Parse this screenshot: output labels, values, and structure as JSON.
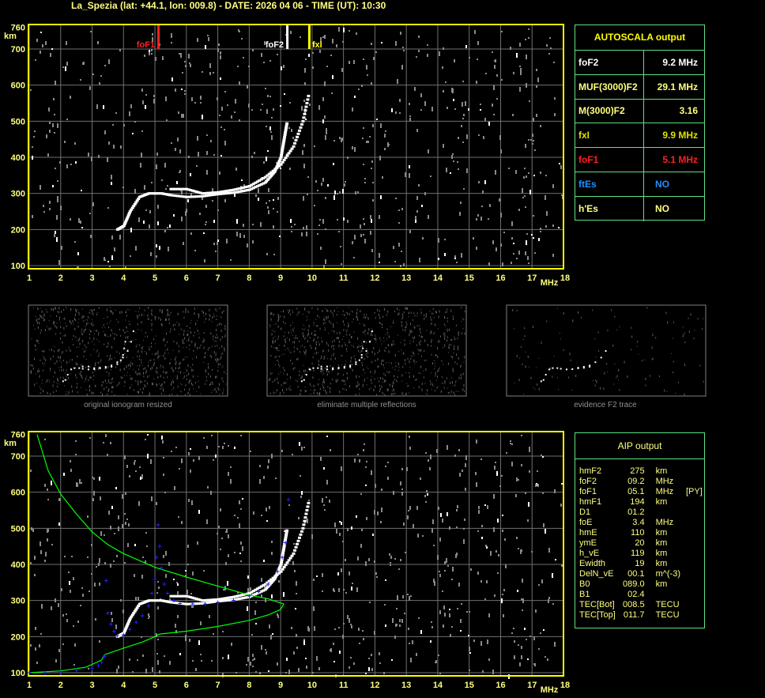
{
  "header": {
    "title": "La_Spezia (lat: +44.1, lon: 009.8) - DATE: 2026 04 06 - TIME (UT): 10:30"
  },
  "colors": {
    "frame": "#ffff00",
    "grid": "#707070",
    "foF1": "#ff2020",
    "foF2": "#ffffff",
    "fxI": "#ffff00",
    "profile": "#00ff00",
    "synthetic": "#2020ff",
    "table_border": "#60e080",
    "blue_text": "#1e90ff"
  },
  "chart_data": [
    {
      "type": "scatter",
      "xlabel": "MHz",
      "ylabel": "km",
      "xlim": [
        1,
        18
      ],
      "ylim": [
        100,
        760
      ],
      "xticks": [
        "1",
        "2",
        "3",
        "4",
        "5",
        "6",
        "7",
        "8",
        "9",
        "10",
        "11",
        "12",
        "13",
        "14",
        "15",
        "16",
        "17",
        "18"
      ],
      "yticks": [
        "760",
        "700",
        "600",
        "500",
        "400",
        "300",
        "200",
        "100"
      ],
      "grid": true,
      "markers": [
        {
          "label": "foF1",
          "x": 5.1,
          "color": "#ff2020"
        },
        {
          "label": "foF2",
          "x": 9.2,
          "color": "#ffffff"
        },
        {
          "label": "fxI",
          "x": 9.9,
          "color": "#ffff00"
        }
      ],
      "o_trace": [
        [
          3.8,
          200
        ],
        [
          4.0,
          210
        ],
        [
          4.2,
          250
        ],
        [
          4.5,
          290
        ],
        [
          4.8,
          300
        ],
        [
          5.2,
          300
        ],
        [
          5.5,
          295
        ],
        [
          6,
          290
        ],
        [
          6.5,
          292
        ],
        [
          7,
          298
        ],
        [
          7.5,
          302
        ],
        [
          8,
          310
        ],
        [
          8.5,
          330
        ],
        [
          8.8,
          360
        ],
        [
          9.0,
          400
        ],
        [
          9.1,
          450
        ],
        [
          9.2,
          500
        ]
      ],
      "x_trace": [
        [
          5.5,
          312
        ],
        [
          6,
          312
        ],
        [
          6.5,
          300
        ],
        [
          7,
          303
        ],
        [
          7.5,
          310
        ],
        [
          8,
          320
        ],
        [
          8.5,
          345
        ],
        [
          9,
          380
        ],
        [
          9.4,
          430
        ],
        [
          9.7,
          500
        ],
        [
          9.9,
          580
        ]
      ]
    },
    {
      "type": "line",
      "xlabel": "MHz",
      "ylabel": "km",
      "xlim": [
        1,
        18
      ],
      "ylim": [
        100,
        760
      ],
      "grid": true,
      "xticks": [
        "1",
        "2",
        "3",
        "4",
        "5",
        "6",
        "7",
        "8",
        "9",
        "10",
        "11",
        "12",
        "13",
        "14",
        "15",
        "16",
        "17",
        "18"
      ],
      "yticks": [
        "760",
        "700",
        "600",
        "500",
        "400",
        "300",
        "200",
        "100"
      ],
      "profile": [
        [
          1,
          100
        ],
        [
          2,
          105
        ],
        [
          2.8,
          115
        ],
        [
          3.3,
          135
        ],
        [
          3.4,
          150
        ],
        [
          4,
          168
        ],
        [
          4.6,
          185
        ],
        [
          5.0,
          200
        ],
        [
          5.15,
          207
        ],
        [
          6,
          215
        ],
        [
          7,
          228
        ],
        [
          8,
          245
        ],
        [
          8.6,
          260
        ],
        [
          9.0,
          275
        ],
        [
          9.1,
          290
        ],
        [
          8.6,
          305
        ],
        [
          8,
          315
        ],
        [
          7,
          340
        ],
        [
          6,
          365
        ],
        [
          5,
          392
        ],
        [
          4,
          430
        ],
        [
          3.5,
          455
        ],
        [
          3,
          490
        ],
        [
          2.5,
          540
        ],
        [
          2,
          595
        ],
        [
          1.6,
          660
        ],
        [
          1.25,
          760
        ]
      ],
      "synthetic": [
        [
          1,
          100
        ],
        [
          1.5,
          100
        ],
        [
          2,
          103
        ],
        [
          2.5,
          107
        ],
        [
          3,
          112
        ],
        [
          3.2,
          120
        ],
        [
          3.3,
          130
        ],
        [
          3.4,
          145
        ],
        null,
        [
          3.45,
          355
        ],
        [
          3.5,
          265
        ],
        [
          3.6,
          235
        ],
        [
          3.7,
          215
        ],
        [
          3.8,
          203
        ],
        [
          4,
          205
        ],
        [
          4.2,
          220
        ],
        [
          4.4,
          240
        ],
        [
          4.6,
          258
        ],
        [
          4.8,
          285
        ],
        [
          4.9,
          320
        ],
        [
          5.0,
          360
        ],
        [
          5.05,
          420
        ],
        [
          5.1,
          510
        ],
        null,
        [
          5.15,
          450
        ],
        [
          5.2,
          390
        ],
        [
          5.3,
          345
        ],
        [
          5.4,
          320
        ],
        [
          5.6,
          300
        ],
        [
          5.8,
          292
        ],
        [
          6.2,
          290
        ],
        [
          6.6,
          290
        ],
        [
          7,
          295
        ],
        [
          7.5,
          300
        ],
        [
          8,
          312
        ],
        [
          8.3,
          325
        ],
        [
          8.6,
          345
        ],
        [
          8.9,
          380
        ],
        [
          9.05,
          420
        ],
        [
          9.15,
          460
        ],
        [
          9.25,
          580
        ]
      ]
    }
  ],
  "thumbnails": [
    {
      "caption": "original ionogram resized"
    },
    {
      "caption": "eliminate multiple reflections"
    },
    {
      "caption": "evidence F2 trace"
    }
  ],
  "autoscala": {
    "title": "AUTOSCALA output",
    "rows": [
      {
        "key": "foF2",
        "value": "9.2 MHz",
        "color": "#ffffff"
      },
      {
        "key": "MUF(3000)F2",
        "value": "29.1 MHz",
        "color": "#ffff80"
      },
      {
        "key": "M(3000)F2",
        "value": "3.16",
        "color": "#ffff80"
      },
      {
        "key": "fxI",
        "value": "9.9 MHz",
        "color": "#e0e000"
      },
      {
        "key": "foF1",
        "value": "5.1 MHz",
        "color": "#ff2020"
      },
      {
        "key": "ftEs",
        "value": "NO",
        "color": "#1e90ff"
      },
      {
        "key": "h'Es",
        "value": "NO",
        "color": "#ffff80"
      }
    ]
  },
  "aip": {
    "title": "AIP output",
    "rows": [
      [
        "hmF2",
        "275",
        "km",
        ""
      ],
      [
        "foF2",
        "09.2",
        "MHz",
        ""
      ],
      [
        "foF1",
        "05.1",
        "MHz",
        "[PY]"
      ],
      [
        "hmF1",
        "194",
        "km",
        ""
      ],
      [
        "D1",
        "01.2",
        "",
        ""
      ],
      [
        "foE",
        "3.4",
        "MHz",
        ""
      ],
      [
        "hmE",
        "110",
        "km",
        ""
      ],
      [
        "ymE",
        "20",
        "km",
        ""
      ],
      [
        "h_vE",
        "119",
        "km",
        ""
      ],
      [
        "Ewidth",
        "19",
        "km",
        ""
      ],
      [
        "DelN_vE",
        "00.1",
        "m^(-3)",
        ""
      ],
      [
        "B0",
        "089.0",
        "km",
        ""
      ],
      [
        "B1",
        "02.4",
        "",
        ""
      ],
      [
        "TEC[Bot]",
        "008.5",
        "TECU",
        ""
      ],
      [
        "TEC[Top]",
        "011.7",
        "TECU",
        ""
      ]
    ]
  }
}
